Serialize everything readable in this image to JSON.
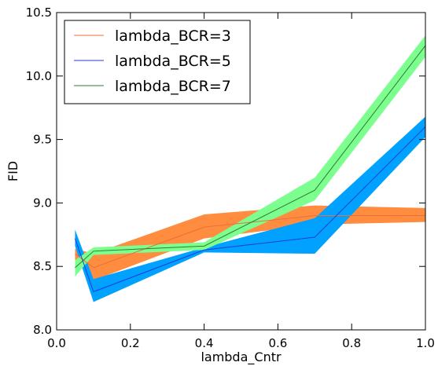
{
  "chart_data": {
    "type": "line",
    "xlabel": "lambda_Cntr",
    "ylabel": "FID",
    "xlim": [
      0.0,
      1.0
    ],
    "ylim": [
      8.0,
      10.5
    ],
    "x_ticks": [
      "0.0",
      "0.2",
      "0.4",
      "0.6",
      "0.8",
      "1.0"
    ],
    "y_ticks": [
      "8.0",
      "8.5",
      "9.0",
      "9.5",
      "10.0",
      "10.5"
    ],
    "grid": false,
    "legend_position": "top-left",
    "series": [
      {
        "name": "lambda_BCR=3",
        "line_color": "#e8703a",
        "band_color": "#ff8c3f",
        "x": [
          0.05,
          0.1,
          0.4,
          0.7,
          1.0
        ],
        "y": [
          8.6,
          8.49,
          8.81,
          8.9,
          8.9
        ],
        "lower": [
          8.55,
          8.39,
          8.72,
          8.83,
          8.85
        ],
        "upper": [
          8.64,
          8.6,
          8.91,
          8.98,
          8.96
        ]
      },
      {
        "name": "lambda_BCR=5",
        "line_color": "#1f3bd6",
        "band_color": "#00a1ff",
        "x": [
          0.05,
          0.1,
          0.4,
          0.7,
          1.0
        ],
        "y": [
          8.72,
          8.3,
          8.63,
          8.73,
          9.6
        ],
        "lower": [
          8.66,
          8.22,
          8.61,
          8.6,
          9.52
        ],
        "upper": [
          8.79,
          8.4,
          8.65,
          8.88,
          9.68
        ]
      },
      {
        "name": "lambda_BCR=7",
        "line_color": "#2e7d2e",
        "band_color": "#7dff8f",
        "x": [
          0.05,
          0.1,
          0.4,
          0.7,
          1.0
        ],
        "y": [
          8.49,
          8.62,
          8.66,
          9.1,
          10.24
        ],
        "lower": [
          8.42,
          8.59,
          8.63,
          9.02,
          10.15
        ],
        "upper": [
          8.55,
          8.65,
          8.69,
          9.2,
          10.32
        ]
      }
    ]
  }
}
